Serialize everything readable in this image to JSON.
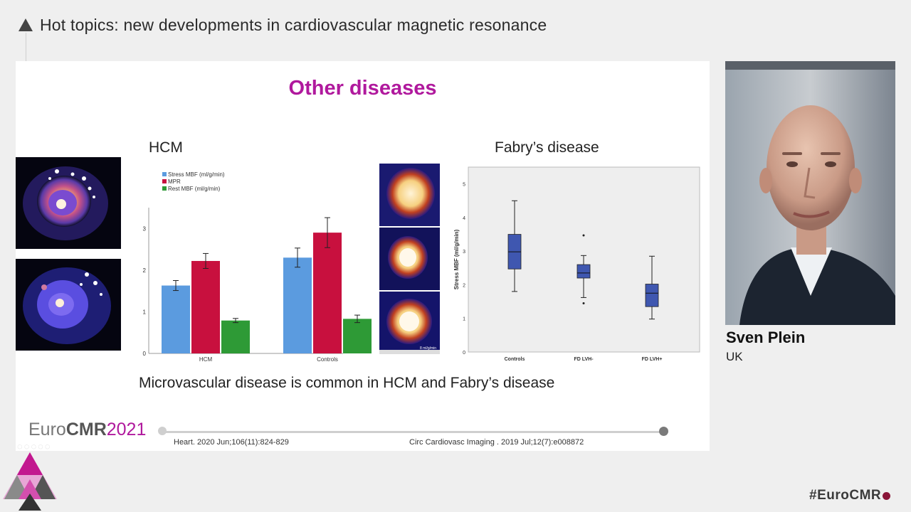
{
  "header": {
    "title": "Hot topics: new developments in cardiovascular magnetic resonance"
  },
  "slide": {
    "title": "Other diseases",
    "hcm_label": "HCM",
    "fabry_label": "Fabry’s disease",
    "caption": "Microvascular disease is common in HCM and Fabry’s disease",
    "scan_scale_label": "8 ml/g/min",
    "reference_left": "Heart. 2020 Jun;106(11):824-829",
    "reference_right": "Circ Cardiovasc Imaging . 2019 Jul;12(7):e008872",
    "brand_prefix": "Euro",
    "brand_bold": "CMR",
    "brand_year": "2021"
  },
  "colors": {
    "accent": "#b0199d",
    "stress": "#5b9bdf",
    "mpr": "#c8103e",
    "rest": "#2e9a36",
    "box": "#3f57b0"
  },
  "chart_data": [
    {
      "type": "bar",
      "categories": [
        "HCM",
        "Controls"
      ],
      "series": [
        {
          "name": "Stress MBF (ml/g/min)",
          "values": [
            1.63,
            2.3
          ],
          "errors": [
            0.12,
            0.23
          ],
          "color": "#5b9bdf"
        },
        {
          "name": "MPR",
          "values": [
            2.22,
            2.9
          ],
          "errors": [
            0.18,
            0.36
          ],
          "color": "#c8103e"
        },
        {
          "name": "Rest MBF (ml/g/min)",
          "values": [
            0.79,
            0.83
          ],
          "errors": [
            0.05,
            0.09
          ],
          "color": "#2e9a36"
        }
      ],
      "yticks": [
        0,
        1,
        2,
        3
      ],
      "ylim": [
        0,
        3.5
      ],
      "legend": "top-left"
    },
    {
      "type": "box",
      "categories": [
        "Controls",
        "FD LVH-",
        "FD LVH+"
      ],
      "ylabel": "Stress MBF (ml/g/min)",
      "yticks": [
        0,
        1,
        2,
        3,
        4,
        5
      ],
      "ylim": [
        0,
        5.5
      ],
      "boxes": [
        {
          "min": 1.8,
          "q1": 2.47,
          "median": 2.98,
          "q3": 3.5,
          "max": 4.5,
          "outliers": []
        },
        {
          "min": 1.62,
          "q1": 2.2,
          "median": 2.35,
          "q3": 2.6,
          "max": 2.87,
          "outliers": [
            3.47,
            1.45
          ]
        },
        {
          "min": 0.98,
          "q1": 1.35,
          "median": 1.75,
          "q3": 2.02,
          "max": 2.85,
          "outliers": []
        }
      ]
    }
  ],
  "speaker": {
    "name": "Sven Plein",
    "country": "UK"
  },
  "footer": {
    "hashtag": "#EuroCMR"
  }
}
